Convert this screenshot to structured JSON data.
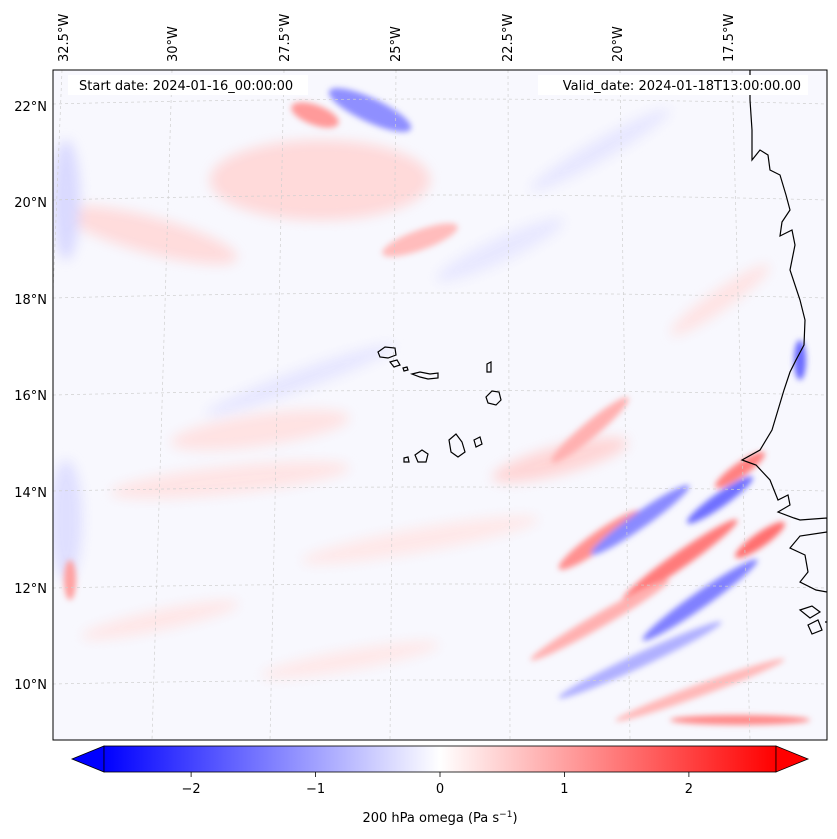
{
  "header": {
    "start_date": "Start date: 2024-01-16_00:00:00",
    "valid_date": "Valid_date: 2024-01-18T13:00:00.00"
  },
  "map": {
    "region": "Eastern tropical North Atlantic / West African coast",
    "lon_labels": [
      "32.5°W",
      "30°W",
      "27.5°W",
      "25°W",
      "22.5°W",
      "20°W",
      "17.5°W"
    ],
    "lat_labels": [
      "22°N",
      "20°N",
      "18°N",
      "16°N",
      "14°N",
      "12°N",
      "10°N"
    ],
    "field_colors": {
      "negative": "#3344ff",
      "neutral": "#ffffff",
      "positive": "#ff2a2a"
    }
  },
  "colorbar": {
    "label": "200 hPa omega (Pa s",
    "label_exponent": "−1",
    "label_close": ")",
    "ticks": [
      "−2",
      "−1",
      "0",
      "1",
      "2"
    ],
    "range": [
      -2.7,
      2.7
    ]
  }
}
